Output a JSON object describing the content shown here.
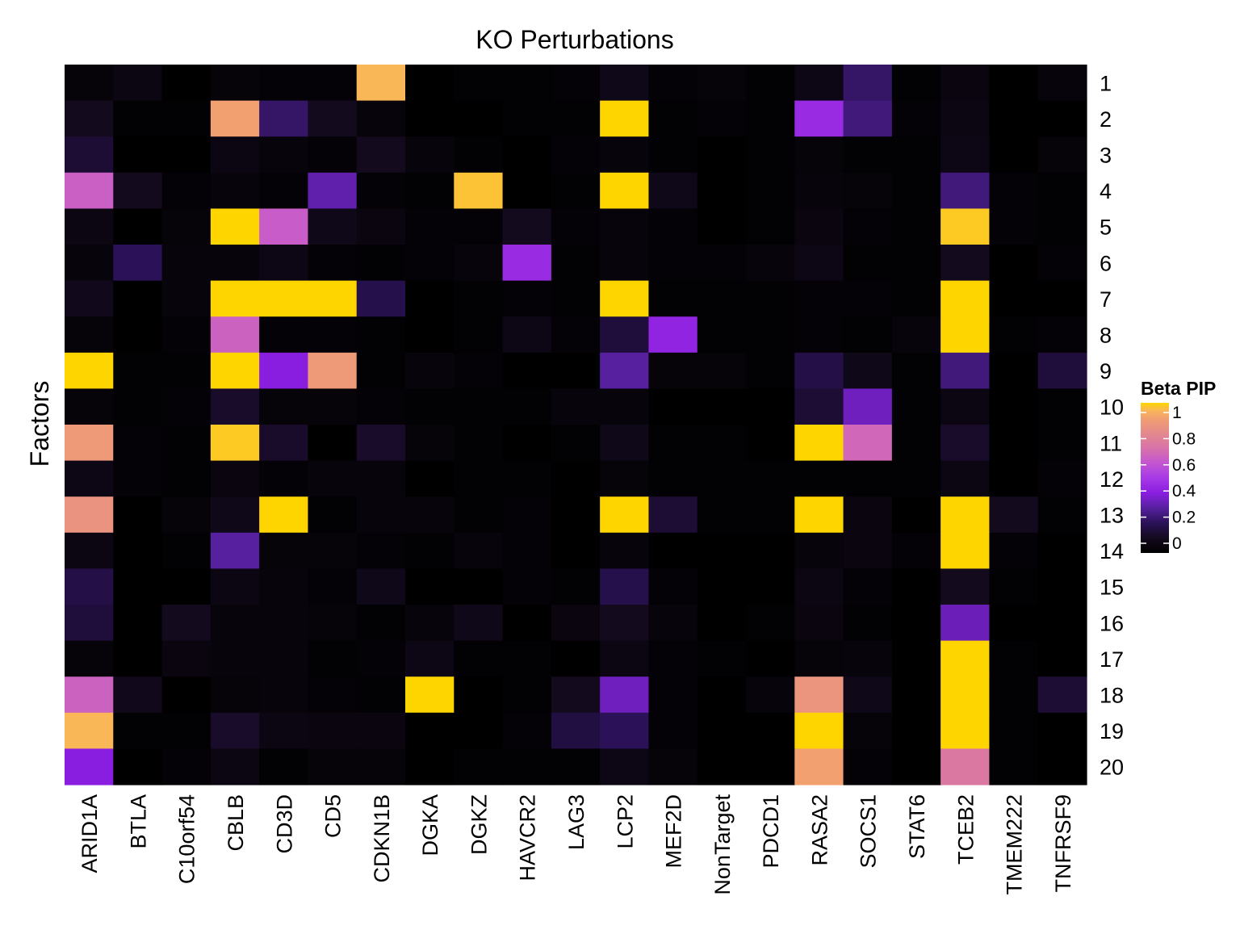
{
  "chart_data": {
    "type": "heatmap",
    "title": "KO Perturbations",
    "ylabel": "Factors",
    "xlabel": "",
    "x_categories": [
      "ARID1A",
      "BTLA",
      "C10orf54",
      "CBLB",
      "CD3D",
      "CD5",
      "CDKN1B",
      "DGKA",
      "DGKZ",
      "HAVCR2",
      "LAG3",
      "LCP2",
      "MEF2D",
      "NonTarget",
      "PDCD1",
      "RASA2",
      "SOCS1",
      "STAT6",
      "TCEB2",
      "TMEM222",
      "TNFRSF9"
    ],
    "y_categories": [
      "1",
      "2",
      "3",
      "4",
      "5",
      "6",
      "7",
      "8",
      "9",
      "10",
      "11",
      "12",
      "13",
      "14",
      "15",
      "16",
      "17",
      "18",
      "19",
      "20"
    ],
    "values": [
      [
        0.03,
        0.06,
        0.0,
        0.03,
        0.02,
        0.02,
        0.95,
        0.0,
        0.01,
        0.01,
        0.02,
        0.08,
        0.02,
        0.03,
        0.01,
        0.07,
        0.22,
        0.01,
        0.05,
        0.0,
        0.04
      ],
      [
        0.1,
        0.01,
        0.01,
        0.9,
        0.22,
        0.1,
        0.04,
        0.0,
        0.0,
        0.01,
        0.01,
        1.0,
        0.01,
        0.02,
        0.01,
        0.45,
        0.25,
        0.02,
        0.06,
        0.0,
        0.0
      ],
      [
        0.14,
        0.0,
        0.0,
        0.06,
        0.04,
        0.02,
        0.1,
        0.04,
        0.01,
        0.0,
        0.02,
        0.04,
        0.01,
        0.0,
        0.01,
        0.03,
        0.01,
        0.01,
        0.07,
        0.0,
        0.03
      ],
      [
        0.63,
        0.1,
        0.02,
        0.04,
        0.02,
        0.32,
        0.02,
        0.01,
        0.97,
        0.0,
        0.01,
        1.0,
        0.08,
        0.0,
        0.01,
        0.04,
        0.03,
        0.01,
        0.25,
        0.02,
        0.01
      ],
      [
        0.06,
        0.0,
        0.03,
        1.0,
        0.62,
        0.08,
        0.05,
        0.02,
        0.02,
        0.1,
        0.02,
        0.04,
        0.02,
        0.0,
        0.01,
        0.05,
        0.02,
        0.01,
        0.98,
        0.02,
        0.01
      ],
      [
        0.04,
        0.2,
        0.04,
        0.04,
        0.07,
        0.02,
        0.01,
        0.02,
        0.04,
        0.45,
        0.01,
        0.04,
        0.02,
        0.02,
        0.04,
        0.07,
        0.01,
        0.01,
        0.1,
        0.0,
        0.02
      ],
      [
        0.09,
        0.0,
        0.04,
        1.0,
        1.0,
        1.0,
        0.18,
        0.0,
        0.01,
        0.02,
        0.01,
        1.0,
        0.01,
        0.01,
        0.01,
        0.02,
        0.02,
        0.01,
        1.0,
        0.0,
        0.0
      ],
      [
        0.03,
        0.0,
        0.02,
        0.64,
        0.02,
        0.02,
        0.01,
        0.0,
        0.01,
        0.07,
        0.02,
        0.15,
        0.42,
        0.01,
        0.01,
        0.02,
        0.01,
        0.04,
        1.0,
        0.01,
        0.02
      ],
      [
        1.0,
        0.01,
        0.01,
        1.0,
        0.4,
        0.87,
        0.01,
        0.04,
        0.02,
        0.0,
        0.0,
        0.3,
        0.03,
        0.03,
        0.01,
        0.17,
        0.08,
        0.01,
        0.25,
        0.0,
        0.15
      ],
      [
        0.03,
        0.01,
        0.02,
        0.12,
        0.03,
        0.03,
        0.02,
        0.01,
        0.01,
        0.01,
        0.04,
        0.04,
        0.0,
        0.0,
        0.0,
        0.14,
        0.35,
        0.01,
        0.06,
        0.0,
        0.01
      ],
      [
        0.87,
        0.02,
        0.01,
        0.98,
        0.12,
        0.0,
        0.12,
        0.03,
        0.01,
        0.0,
        0.01,
        0.08,
        0.01,
        0.01,
        0.0,
        1.0,
        0.66,
        0.01,
        0.12,
        0.0,
        0.01
      ],
      [
        0.07,
        0.02,
        0.01,
        0.05,
        0.02,
        0.04,
        0.04,
        0.0,
        0.01,
        0.01,
        0.0,
        0.03,
        0.01,
        0.01,
        0.01,
        0.01,
        0.01,
        0.01,
        0.06,
        0.0,
        0.02
      ],
      [
        0.84,
        0.0,
        0.03,
        0.08,
        1.0,
        0.01,
        0.04,
        0.04,
        0.01,
        0.02,
        0.0,
        1.0,
        0.14,
        0.01,
        0.01,
        1.0,
        0.05,
        0.0,
        1.0,
        0.1,
        0.01
      ],
      [
        0.06,
        0.0,
        0.01,
        0.3,
        0.03,
        0.03,
        0.02,
        0.01,
        0.04,
        0.02,
        0.0,
        0.04,
        0.0,
        0.0,
        0.0,
        0.04,
        0.05,
        0.02,
        1.0,
        0.02,
        0.0
      ],
      [
        0.17,
        0.0,
        0.0,
        0.06,
        0.04,
        0.02,
        0.08,
        0.0,
        0.0,
        0.02,
        0.01,
        0.18,
        0.02,
        0.0,
        0.0,
        0.06,
        0.02,
        0.0,
        0.1,
        0.01,
        0.0
      ],
      [
        0.15,
        0.0,
        0.1,
        0.04,
        0.04,
        0.03,
        0.01,
        0.04,
        0.08,
        0.0,
        0.05,
        0.1,
        0.04,
        0.0,
        0.01,
        0.05,
        0.01,
        0.0,
        0.34,
        0.0,
        0.0
      ],
      [
        0.03,
        0.0,
        0.05,
        0.04,
        0.04,
        0.01,
        0.02,
        0.07,
        0.01,
        0.01,
        0.0,
        0.06,
        0.02,
        0.01,
        0.0,
        0.03,
        0.04,
        0.0,
        1.0,
        0.01,
        0.0
      ],
      [
        0.64,
        0.09,
        0.0,
        0.03,
        0.04,
        0.02,
        0.01,
        1.0,
        0.0,
        0.01,
        0.1,
        0.35,
        0.02,
        0.0,
        0.04,
        0.85,
        0.08,
        0.0,
        1.0,
        0.01,
        0.14
      ],
      [
        0.95,
        0.01,
        0.01,
        0.12,
        0.06,
        0.05,
        0.05,
        0.0,
        0.0,
        0.02,
        0.16,
        0.2,
        0.02,
        0.0,
        0.0,
        1.0,
        0.03,
        0.0,
        1.0,
        0.01,
        0.0
      ],
      [
        0.4,
        0.0,
        0.02,
        0.06,
        0.01,
        0.03,
        0.03,
        0.0,
        0.01,
        0.01,
        0.01,
        0.07,
        0.03,
        0.0,
        0.0,
        0.9,
        0.02,
        0.0,
        0.72,
        0.01,
        0.0
      ]
    ],
    "colorscale": {
      "title": "Beta PIP",
      "min": 0,
      "max": 1,
      "ticks": [
        0,
        0.2,
        0.4,
        0.6,
        0.8,
        1
      ],
      "tick_labels": [
        "0",
        "0.2",
        "0.4",
        "0.6",
        "0.8",
        "1"
      ],
      "stops": [
        [
          0.0,
          "#000000"
        ],
        [
          0.1,
          "#130a1e"
        ],
        [
          0.2,
          "#2b1258"
        ],
        [
          0.3,
          "#56209e"
        ],
        [
          0.4,
          "#8a1ee0"
        ],
        [
          0.5,
          "#a73ae6"
        ],
        [
          0.6,
          "#c456d0"
        ],
        [
          0.7,
          "#d873a8"
        ],
        [
          0.8,
          "#e48a8c"
        ],
        [
          0.9,
          "#f2a070"
        ],
        [
          0.95,
          "#f9b758"
        ],
        [
          1.0,
          "#ffd500"
        ]
      ]
    },
    "legend_position": "right",
    "grid": false
  }
}
